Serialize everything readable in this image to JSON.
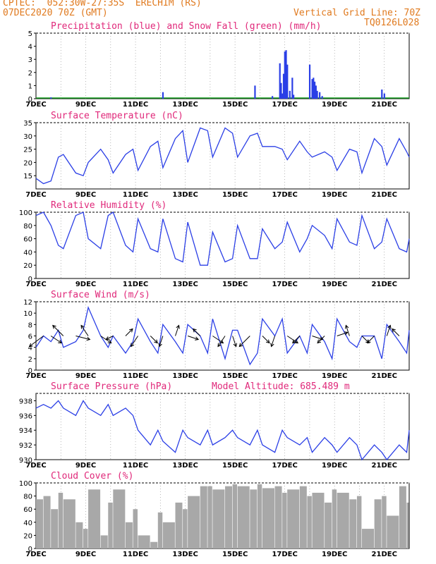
{
  "header": {
    "line1": "CPTEC:  052:30W-27:35S  ERECHIM (RS)",
    "line2": "07DEC2020 70Z (GMT)",
    "grid_note": "Vertical Grid Line: 70Z",
    "code": "TQ0126L028"
  },
  "x_labels": [
    "7DEC",
    "9DEC",
    "11DEC",
    "13DEC",
    "15DEC",
    "17DEC",
    "19DEC",
    "21DEC"
  ],
  "colors": {
    "blue": "#2b3fe6",
    "green": "#16a020",
    "gray": "#a8a8a8",
    "title": "#e0287a",
    "header": "#e07a1f"
  },
  "chart_data": [
    {
      "type": "bar",
      "title": "Precipitation (blue) and Snow Fall (green) (mm/h)",
      "ylim": [
        0,
        5
      ],
      "yticks": [
        "0",
        "1",
        "2",
        "3",
        "4",
        "5"
      ],
      "x_days": [
        0.6,
        5.1,
        8.8,
        9.5,
        9.8,
        9.85,
        9.9,
        9.95,
        10.0,
        10.05,
        10.1,
        10.2,
        10.3,
        10.35,
        11.0,
        11.1,
        11.15,
        11.2,
        11.25,
        11.3,
        11.4,
        11.5,
        13.9,
        14.0
      ],
      "series": [
        {
          "name": "Precipitation",
          "values": [
            0.1,
            0.5,
            1.0,
            0.2,
            2.7,
            1.2,
            0.4,
            1.9,
            3.6,
            3.7,
            2.6,
            0.6,
            1.6,
            0.3,
            2.6,
            1.5,
            1.6,
            1.3,
            1.0,
            0.6,
            0.5,
            0.2,
            0.7,
            0.4
          ]
        }
      ]
    },
    {
      "type": "line",
      "title": "Surface Temperature (nC)",
      "ylim": [
        10,
        35
      ],
      "yticks": [
        "15",
        "20",
        "25",
        "30",
        "35"
      ],
      "x_days": [
        0,
        0.3,
        0.6,
        0.9,
        1.1,
        1.6,
        1.9,
        2.1,
        2.6,
        2.9,
        3.1,
        3.6,
        3.9,
        4.1,
        4.6,
        4.9,
        5.1,
        5.6,
        5.9,
        6.1,
        6.6,
        6.9,
        7.1,
        7.6,
        7.9,
        8.1,
        8.6,
        8.9,
        9.1,
        9.6,
        9.9,
        10.1,
        10.6,
        10.9,
        11.1,
        11.6,
        11.9,
        12.1,
        12.6,
        12.9,
        13.1,
        13.6,
        13.9,
        14.1,
        14.6,
        14.9,
        15.0
      ],
      "series": [
        {
          "name": "Temperature",
          "values": [
            14,
            12,
            13,
            22,
            23,
            16,
            15,
            20,
            25,
            21,
            16,
            23,
            25,
            17,
            26,
            28,
            18,
            29,
            32,
            20,
            33,
            32,
            22,
            33,
            31,
            22,
            30,
            31,
            26,
            26,
            25,
            21,
            28,
            24,
            22,
            24,
            22,
            17,
            25,
            24,
            16,
            29,
            26,
            19,
            29,
            24,
            22
          ]
        }
      ]
    },
    {
      "type": "line",
      "title": "Relative Humidity (%)",
      "ylim": [
        0,
        100
      ],
      "yticks": [
        "0",
        "20",
        "40",
        "60",
        "80",
        "100"
      ],
      "x_days": [
        0,
        0.3,
        0.6,
        0.9,
        1.1,
        1.6,
        1.9,
        2.1,
        2.6,
        2.9,
        3.1,
        3.6,
        3.9,
        4.1,
        4.6,
        4.9,
        5.1,
        5.6,
        5.9,
        6.1,
        6.6,
        6.9,
        7.1,
        7.6,
        7.9,
        8.1,
        8.6,
        8.9,
        9.1,
        9.6,
        9.9,
        10.1,
        10.6,
        10.9,
        11.1,
        11.6,
        11.9,
        12.1,
        12.6,
        12.9,
        13.1,
        13.6,
        13.9,
        14.1,
        14.6,
        14.9,
        15.0
      ],
      "series": [
        {
          "name": "Humidity",
          "values": [
            95,
            100,
            80,
            50,
            45,
            95,
            100,
            60,
            45,
            95,
            100,
            50,
            40,
            90,
            45,
            40,
            90,
            30,
            25,
            85,
            20,
            20,
            70,
            25,
            30,
            80,
            30,
            30,
            75,
            45,
            55,
            85,
            40,
            60,
            80,
            65,
            45,
            90,
            55,
            50,
            95,
            45,
            55,
            90,
            45,
            40,
            60
          ]
        }
      ]
    },
    {
      "type": "line",
      "title": "Surface Wind (m/s)",
      "ylim": [
        0,
        12
      ],
      "yticks": [
        "0",
        "2",
        "4",
        "6",
        "8",
        "10",
        "12"
      ],
      "x_days": [
        0,
        0.3,
        0.6,
        0.9,
        1.1,
        1.6,
        1.9,
        2.1,
        2.6,
        2.9,
        3.1,
        3.6,
        3.9,
        4.1,
        4.6,
        4.9,
        5.1,
        5.6,
        5.9,
        6.1,
        6.6,
        6.9,
        7.1,
        7.6,
        7.9,
        8.1,
        8.6,
        8.9,
        9.1,
        9.6,
        9.9,
        10.1,
        10.6,
        10.9,
        11.1,
        11.6,
        11.9,
        12.1,
        12.6,
        12.9,
        13.1,
        13.6,
        13.9,
        14.1,
        14.6,
        14.9,
        15.0
      ],
      "series": [
        {
          "name": "Wind speed",
          "values": [
            4,
            6,
            5,
            7,
            4,
            5,
            7,
            11,
            6,
            4,
            6,
            3,
            5,
            9,
            5,
            3,
            8,
            5,
            3,
            8,
            6,
            3,
            9,
            2,
            7,
            7,
            1,
            3,
            9,
            6,
            9,
            3,
            6,
            3,
            8,
            5,
            2,
            9,
            5,
            4,
            6,
            6,
            2,
            8,
            5,
            3,
            7
          ]
        }
      ],
      "arrows": [
        {
          "x_day": 0.3,
          "dx": -4,
          "dy": 3
        },
        {
          "x_day": 0.6,
          "dx": 3,
          "dy": 2
        },
        {
          "x_day": 1.1,
          "dx": -3,
          "dy": -3
        },
        {
          "x_day": 1.6,
          "dx": 4,
          "dy": 1
        },
        {
          "x_day": 2.1,
          "dx": -2,
          "dy": -3
        },
        {
          "x_day": 2.6,
          "dx": 3,
          "dy": 2
        },
        {
          "x_day": 3.1,
          "dx": -2,
          "dy": 1
        },
        {
          "x_day": 3.6,
          "dx": 2,
          "dy": -2
        },
        {
          "x_day": 4.1,
          "dx": -2,
          "dy": 3
        },
        {
          "x_day": 4.6,
          "dx": 2,
          "dy": 2
        },
        {
          "x_day": 5.1,
          "dx": -1,
          "dy": 3
        },
        {
          "x_day": 5.6,
          "dx": 1,
          "dy": -3
        },
        {
          "x_day": 6.1,
          "dx": 3,
          "dy": 1
        },
        {
          "x_day": 6.6,
          "dx": -2,
          "dy": -2
        },
        {
          "x_day": 7.1,
          "dx": 3,
          "dy": 2
        },
        {
          "x_day": 7.6,
          "dx": -2,
          "dy": 3
        },
        {
          "x_day": 7.9,
          "dx": 1,
          "dy": 3
        },
        {
          "x_day": 8.6,
          "dx": -3,
          "dy": 3
        },
        {
          "x_day": 9.1,
          "dx": 2,
          "dy": 2
        },
        {
          "x_day": 9.6,
          "dx": -1,
          "dy": 3
        },
        {
          "x_day": 10.1,
          "dx": 3,
          "dy": 2
        },
        {
          "x_day": 10.6,
          "dx": -2,
          "dy": 2
        },
        {
          "x_day": 11.1,
          "dx": 3,
          "dy": 1
        },
        {
          "x_day": 11.6,
          "dx": -2,
          "dy": 2
        },
        {
          "x_day": 12.1,
          "dx": 3,
          "dy": -1
        },
        {
          "x_day": 12.6,
          "dx": -1,
          "dy": -3
        },
        {
          "x_day": 13.1,
          "dx": 2,
          "dy": 2
        },
        {
          "x_day": 13.6,
          "dx": -2,
          "dy": 2
        },
        {
          "x_day": 14.1,
          "dx": 1,
          "dy": -3
        },
        {
          "x_day": 14.6,
          "dx": -2,
          "dy": -2
        }
      ]
    },
    {
      "type": "line",
      "title": "Surface Pressure (hPa)",
      "subtitle": "Model Altitude: 685.489 m",
      "ylim": [
        930,
        939
      ],
      "yticks": [
        "930",
        "932",
        "934",
        "936",
        "938"
      ],
      "x_days": [
        0,
        0.3,
        0.6,
        0.9,
        1.1,
        1.6,
        1.9,
        2.1,
        2.6,
        2.9,
        3.1,
        3.6,
        3.9,
        4.1,
        4.6,
        4.9,
        5.1,
        5.6,
        5.9,
        6.1,
        6.6,
        6.9,
        7.1,
        7.6,
        7.9,
        8.1,
        8.6,
        8.9,
        9.1,
        9.6,
        9.9,
        10.1,
        10.6,
        10.9,
        11.1,
        11.6,
        11.9,
        12.1,
        12.6,
        12.9,
        13.1,
        13.6,
        13.9,
        14.1,
        14.6,
        14.9,
        15.0
      ],
      "series": [
        {
          "name": "Pressure",
          "values": [
            937,
            937.5,
            937,
            938,
            937,
            936,
            938,
            937,
            936,
            937.5,
            936,
            937,
            936,
            934,
            932,
            934,
            932.5,
            931,
            934,
            933,
            932,
            934,
            932,
            933,
            934,
            933,
            932,
            934,
            932,
            931,
            934,
            933,
            932,
            933,
            931,
            933,
            932,
            931,
            933,
            932,
            930,
            932,
            931,
            930,
            932,
            931,
            934
          ]
        }
      ]
    },
    {
      "type": "area",
      "title": "Cloud Cover (%)",
      "ylim": [
        0,
        100
      ],
      "yticks": [
        "0",
        "20",
        "40",
        "60",
        "80",
        "100"
      ],
      "x_days": [
        0,
        0.3,
        0.6,
        0.9,
        1.1,
        1.6,
        1.9,
        2.1,
        2.6,
        2.9,
        3.1,
        3.6,
        3.9,
        4.1,
        4.6,
        4.9,
        5.1,
        5.6,
        5.9,
        6.1,
        6.6,
        6.9,
        7.1,
        7.6,
        7.9,
        8.1,
        8.6,
        8.9,
        9.1,
        9.6,
        9.9,
        10.1,
        10.6,
        10.9,
        11.1,
        11.6,
        11.9,
        12.1,
        12.6,
        12.9,
        13.1,
        13.6,
        13.9,
        14.1,
        14.6,
        14.9,
        15.0
      ],
      "series": [
        {
          "name": "Cloud cover",
          "values": [
            75,
            80,
            60,
            85,
            75,
            40,
            30,
            90,
            20,
            70,
            90,
            40,
            60,
            20,
            10,
            55,
            40,
            70,
            60,
            80,
            95,
            95,
            90,
            95,
            98,
            95,
            90,
            98,
            92,
            95,
            85,
            90,
            95,
            80,
            85,
            70,
            90,
            85,
            75,
            80,
            30,
            75,
            80,
            50,
            95,
            70,
            60
          ]
        }
      ]
    }
  ]
}
